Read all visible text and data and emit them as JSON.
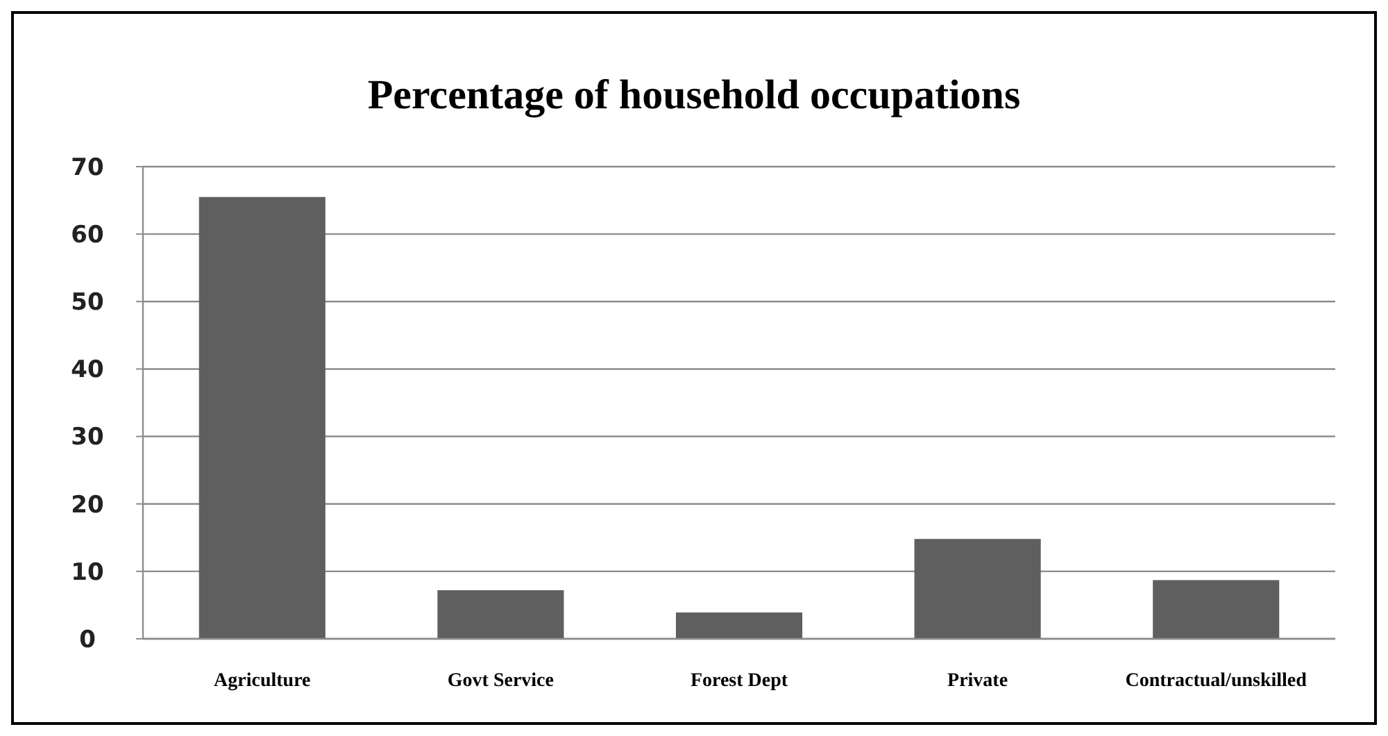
{
  "chart_data": {
    "type": "bar",
    "title": "Percentage of household occupations",
    "categories": [
      "Agriculture",
      "Govt Service",
      "Forest Dept",
      "Private",
      "Contractual/unskilled"
    ],
    "values": [
      65.5,
      7.2,
      3.9,
      14.8,
      8.7
    ],
    "color": "#5f5f5f",
    "ylim": [
      0,
      70
    ],
    "yticks": [
      0,
      10,
      20,
      30,
      40,
      50,
      60,
      70
    ],
    "grid": "y"
  }
}
